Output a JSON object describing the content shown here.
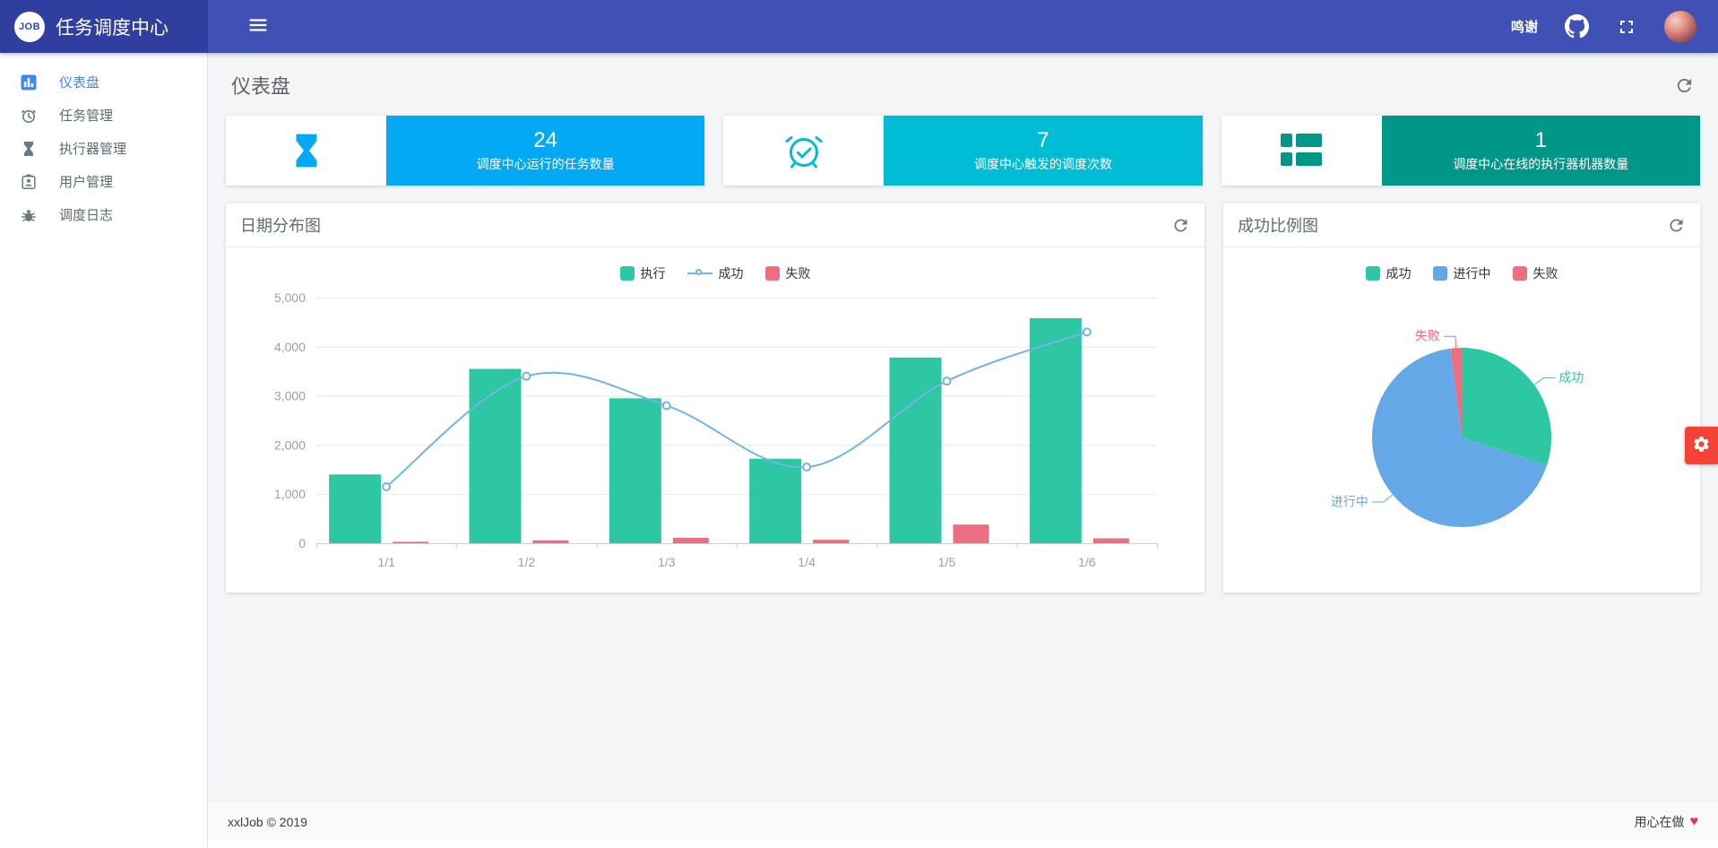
{
  "navbar": {
    "logo_text": "JOB",
    "title": "任务调度中心",
    "thanks_label": "鸣谢"
  },
  "sidebar": {
    "items": [
      {
        "label": "仪表盘",
        "icon": "dashboard-icon",
        "active": true
      },
      {
        "label": "任务管理",
        "icon": "alarm-clock-icon",
        "active": false
      },
      {
        "label": "执行器管理",
        "icon": "hourglass-icon",
        "active": false
      },
      {
        "label": "用户管理",
        "icon": "badge-icon",
        "active": false
      },
      {
        "label": "调度日志",
        "icon": "bug-icon",
        "active": false
      }
    ]
  },
  "page": {
    "title": "仪表盘"
  },
  "stats": [
    {
      "value": "24",
      "label": "调度中心运行的任务数量",
      "color": "#03a9f4",
      "icon": "hourglass-icon"
    },
    {
      "value": "7",
      "label": "调度中心触发的调度次数",
      "color": "#00bcd4",
      "icon": "alarm-check-icon"
    },
    {
      "value": "1",
      "label": "调度中心在线的执行器机器数量",
      "color": "#009688",
      "icon": "servers-icon"
    }
  ],
  "panels": {
    "date_chart": {
      "title": "日期分布图"
    },
    "pie_chart": {
      "title": "成功比例图"
    }
  },
  "chart_data": [
    {
      "type": "bar",
      "title": "日期分布图",
      "categories": [
        "1/1",
        "1/2",
        "1/3",
        "1/4",
        "1/5",
        "1/6"
      ],
      "series": [
        {
          "name": "执行",
          "type": "bar",
          "color": "#2dc7a3",
          "values": [
            1400,
            3550,
            2950,
            1720,
            3780,
            4580
          ]
        },
        {
          "name": "成功",
          "type": "line",
          "color": "#72b5e5",
          "values": [
            1150,
            3400,
            2800,
            1550,
            3300,
            4300
          ]
        },
        {
          "name": "失败",
          "type": "bar",
          "color": "#ee6e81",
          "values": [
            30,
            60,
            110,
            70,
            380,
            100
          ]
        }
      ],
      "ylim": [
        0,
        5000
      ],
      "ytick_step": 1000,
      "grid": true,
      "legend_position": "top"
    },
    {
      "type": "pie",
      "title": "成功比例图",
      "legend_position": "top",
      "slices": [
        {
          "name": "成功",
          "value": 30,
          "color": "#2dc7a3"
        },
        {
          "name": "进行中",
          "value": 68,
          "color": "#64a8e8"
        },
        {
          "name": "失败",
          "value": 2,
          "color": "#ee6e81"
        }
      ]
    }
  ],
  "footer": {
    "left": "xxlJob © 2019",
    "right": "用心在做",
    "heart": "♥"
  }
}
